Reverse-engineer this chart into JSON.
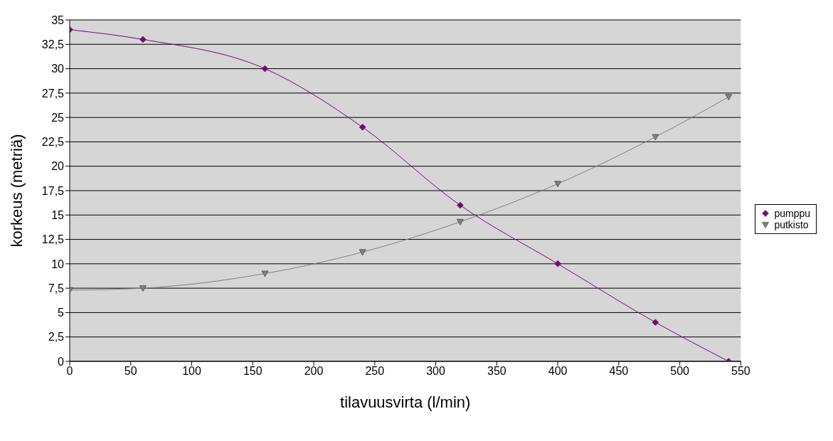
{
  "chart_data": {
    "type": "line",
    "xlabel": "tilavuusvirta (l/min)",
    "ylabel": "korkeus (metriä)",
    "xlim": [
      0,
      550
    ],
    "xticks": [
      0,
      50,
      100,
      150,
      200,
      250,
      300,
      350,
      400,
      450,
      500,
      550
    ],
    "ylim": [
      0,
      35
    ],
    "yticks": [
      0,
      {
        "value": 2.5,
        "label": "2,5"
      },
      5,
      {
        "value": 7.5,
        "label": "7,5"
      },
      10,
      {
        "value": 12.5,
        "label": "12,5"
      },
      15,
      {
        "value": 17.5,
        "label": "17,5"
      },
      20,
      {
        "value": 22.5,
        "label": "22,5"
      },
      25,
      {
        "value": 27.5,
        "label": "27,5"
      },
      30,
      {
        "value": 32.5,
        "label": "32,5"
      },
      35
    ],
    "grid": "y",
    "legend": "right",
    "line_style": "solid",
    "series": [
      {
        "name": "pumppu",
        "color": "#800080",
        "marker": "diamond",
        "x": [
          0,
          60,
          160,
          240,
          320,
          400,
          480,
          540
        ],
        "values": [
          34,
          33,
          30,
          24,
          16,
          10,
          4,
          0
        ]
      },
      {
        "name": "putkisto",
        "color": "#808080",
        "marker": "triangle",
        "x": [
          0,
          60,
          160,
          240,
          320,
          400,
          480,
          540
        ],
        "values": [
          7.3,
          7.5,
          9,
          11.2,
          14.3,
          18.2,
          23,
          27.1
        ]
      }
    ]
  }
}
